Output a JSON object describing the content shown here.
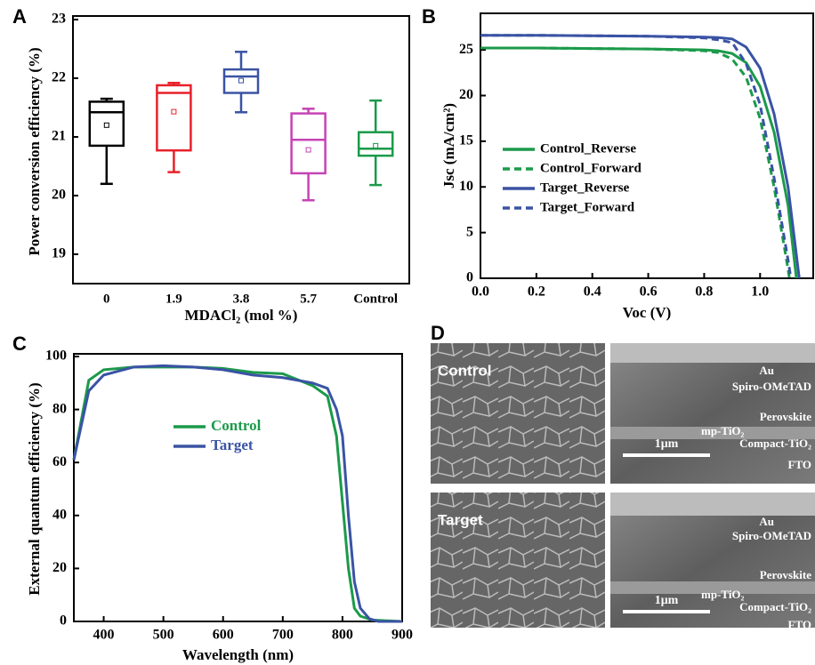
{
  "chart_data": [
    {
      "type": "box",
      "panel_label": "A",
      "ylabel": "Power conversion efficiency (%)",
      "xlabel": "MDACl₂ (mol %)",
      "categories": [
        "0",
        "1.9",
        "3.8",
        "5.7",
        "Control"
      ],
      "boxes": [
        {
          "whisker_low": 20.2,
          "q1": 20.85,
          "median": 21.42,
          "q3": 21.6,
          "whisker_high": 21.65,
          "mean": 21.2,
          "color": "#000000"
        },
        {
          "whisker_low": 20.4,
          "q1": 20.77,
          "median": 21.75,
          "q3": 21.88,
          "whisker_high": 21.92,
          "mean": 21.43,
          "color": "#e8202a"
        },
        {
          "whisker_low": 21.42,
          "q1": 21.75,
          "median": 22.03,
          "q3": 22.15,
          "whisker_high": 22.45,
          "mean": 21.96,
          "color": "#3a53a4"
        },
        {
          "whisker_low": 19.92,
          "q1": 20.38,
          "median": 20.95,
          "q3": 21.4,
          "whisker_high": 21.48,
          "mean": 20.78,
          "color": "#c543b4"
        },
        {
          "whisker_low": 20.18,
          "q1": 20.68,
          "median": 20.8,
          "q3": 21.08,
          "whisker_high": 21.62,
          "mean": 20.85,
          "color": "#1b9a4a"
        }
      ],
      "ylim": [
        18.5,
        23
      ],
      "yticks": [
        19,
        20,
        21,
        22,
        23
      ]
    },
    {
      "type": "line",
      "panel_label": "B",
      "ylabel": "Jsc (mA/cm²)",
      "xlabel": "Voc (V)",
      "series": [
        {
          "name": "Control_Reverse",
          "color": "#1b9a4a",
          "dashed": false,
          "x": [
            0,
            0.2,
            0.4,
            0.6,
            0.8,
            0.85,
            0.9,
            0.95,
            1.0,
            1.05,
            1.1,
            1.13
          ],
          "values": [
            25.2,
            25.2,
            25.15,
            25.1,
            25.0,
            24.9,
            24.6,
            23.6,
            21,
            16,
            8,
            0
          ]
        },
        {
          "name": "Control_Forward",
          "color": "#1b9a4a",
          "dashed": true,
          "x": [
            0,
            0.2,
            0.4,
            0.6,
            0.8,
            0.85,
            0.9,
            0.95,
            1.0,
            1.05,
            1.1,
            1.105
          ],
          "values": [
            25.2,
            25.2,
            25.15,
            25.1,
            24.9,
            24.7,
            24.0,
            22,
            17.5,
            10,
            1,
            0
          ]
        },
        {
          "name": "Target_Reverse",
          "color": "#3a53a4",
          "dashed": false,
          "x": [
            0,
            0.2,
            0.4,
            0.6,
            0.8,
            0.85,
            0.9,
            0.95,
            1.0,
            1.05,
            1.1,
            1.14
          ],
          "values": [
            26.6,
            26.6,
            26.55,
            26.5,
            26.4,
            26.35,
            26.2,
            25.3,
            23,
            18,
            10,
            0
          ]
        },
        {
          "name": "Target_Forward",
          "color": "#3a53a4",
          "dashed": true,
          "x": [
            0,
            0.2,
            0.4,
            0.6,
            0.8,
            0.85,
            0.9,
            0.95,
            1.0,
            1.05,
            1.1,
            1.11
          ],
          "values": [
            26.6,
            26.6,
            26.55,
            26.5,
            26.3,
            26.1,
            25.8,
            23.5,
            19,
            11,
            2,
            0
          ]
        }
      ],
      "xlim": [
        0,
        1.19
      ],
      "ylim": [
        0,
        29
      ],
      "xticks": [
        {
          "value": 0,
          "label": "0.0"
        },
        {
          "value": 0.2,
          "label": "0.2"
        },
        {
          "value": 0.4,
          "label": "0.4"
        },
        {
          "value": 0.6,
          "label": "0.6"
        },
        {
          "value": 0.8,
          "label": "0.8"
        },
        {
          "value": 1,
          "label": "1.0"
        }
      ],
      "yticks": [
        0,
        5,
        10,
        15,
        20,
        25
      ]
    },
    {
      "type": "line",
      "panel_label": "C",
      "ylabel": "External quantum efficiency (%)",
      "xlabel": "Wavelength (nm)",
      "series": [
        {
          "name": "Control",
          "color": "#1b9a4a",
          "dashed": false,
          "x": [
            350,
            375,
            400,
            450,
            500,
            550,
            600,
            650,
            700,
            750,
            775,
            790,
            800,
            810,
            820,
            830,
            850,
            900
          ],
          "values": [
            61,
            91,
            95,
            96,
            96,
            96,
            95.5,
            94,
            93.5,
            89,
            85,
            70,
            45,
            20,
            5,
            2,
            0.5,
            0
          ]
        },
        {
          "name": "Target",
          "color": "#3a53a4",
          "dashed": false,
          "x": [
            350,
            375,
            400,
            450,
            500,
            550,
            600,
            650,
            700,
            750,
            775,
            790,
            800,
            810,
            820,
            830,
            845,
            860,
            900
          ],
          "values": [
            61,
            87,
            93,
            96,
            96.5,
            96,
            95,
            93,
            92,
            90,
            88,
            80,
            70,
            40,
            15,
            5,
            1,
            0,
            0
          ]
        }
      ],
      "xlim": [
        350,
        900
      ],
      "ylim": [
        0,
        100
      ],
      "xticks": [
        400,
        500,
        600,
        700,
        800,
        900
      ],
      "yticks": [
        0,
        20,
        40,
        60,
        80,
        100
      ]
    }
  ],
  "panel_d": {
    "panel_label": "D",
    "images": [
      {
        "label": "Control",
        "layers": [
          "Au",
          "Spiro-OMeTAD",
          "Perovskite",
          "mp-TiO₂",
          "Compact-TiO₂",
          "FTO"
        ],
        "scale_bar": "1μm"
      },
      {
        "label": "Target",
        "layers": [
          "Au",
          "Spiro-OMeTAD",
          "Perovskite",
          "mp-TiO₂",
          "Compact-TiO₂",
          "FTO"
        ],
        "scale_bar": "1μm"
      }
    ]
  }
}
